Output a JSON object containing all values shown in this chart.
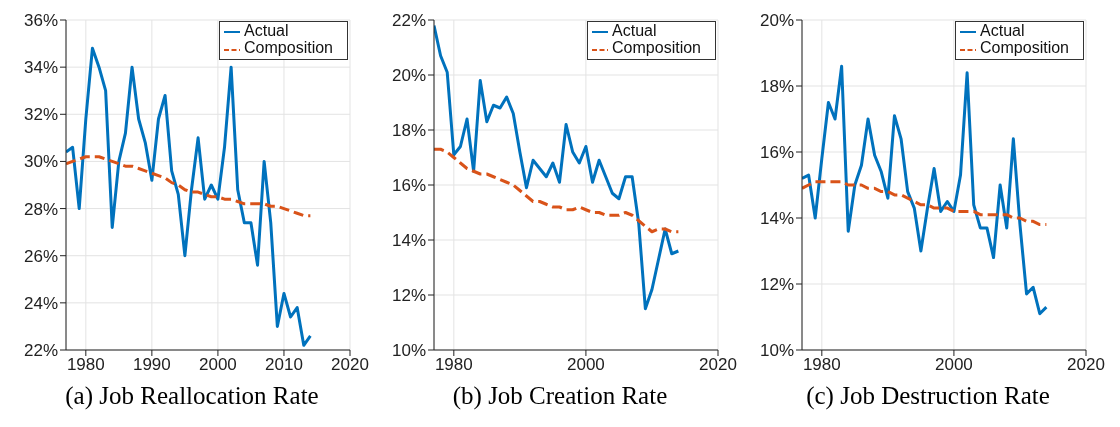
{
  "chart_data": [
    {
      "type": "line",
      "title": "(a) Job Reallocation Rate",
      "x": [
        1977,
        1978,
        1979,
        1980,
        1981,
        1982,
        1983,
        1984,
        1985,
        1986,
        1987,
        1988,
        1989,
        1990,
        1991,
        1992,
        1993,
        1994,
        1995,
        1996,
        1997,
        1998,
        1999,
        2000,
        2001,
        2002,
        2003,
        2004,
        2005,
        2006,
        2007,
        2008,
        2009,
        2010,
        2011,
        2012,
        2013,
        2014
      ],
      "series": [
        {
          "name": "Actual",
          "color": "#0072bd",
          "line_style": "solid",
          "values": [
            30.4,
            30.6,
            28.0,
            31.8,
            34.8,
            34.0,
            33.0,
            27.2,
            30.0,
            31.2,
            34.0,
            31.8,
            30.8,
            29.2,
            31.8,
            32.8,
            29.6,
            28.6,
            26.0,
            28.8,
            31.0,
            28.4,
            29.0,
            28.4,
            30.6,
            34.0,
            28.8,
            27.4,
            27.4,
            25.6,
            30.0,
            27.4,
            23.0,
            24.4,
            23.4,
            23.8,
            22.2,
            22.6
          ]
        },
        {
          "name": "Composition",
          "color": "#d95319",
          "line_style": "dashed",
          "values": [
            29.9,
            30.0,
            30.1,
            30.2,
            30.2,
            30.2,
            30.1,
            30.0,
            29.9,
            29.8,
            29.8,
            29.7,
            29.6,
            29.5,
            29.4,
            29.3,
            29.1,
            29.0,
            28.8,
            28.7,
            28.7,
            28.6,
            28.5,
            28.5,
            28.4,
            28.4,
            28.3,
            28.2,
            28.2,
            28.2,
            28.2,
            28.1,
            28.1,
            28.0,
            27.9,
            27.8,
            27.7,
            27.7
          ]
        }
      ],
      "xlim": [
        1977,
        2020
      ],
      "xticks": [
        1980,
        1990,
        2000,
        2010,
        2020
      ],
      "ylim": [
        22,
        36
      ],
      "yticks": [
        {
          "value": 22,
          "label": "22%"
        },
        {
          "value": 24,
          "label": "24%"
        },
        {
          "value": 26,
          "label": "26%"
        },
        {
          "value": 28,
          "label": "28%"
        },
        {
          "value": 30,
          "label": "30%"
        },
        {
          "value": 32,
          "label": "32%"
        },
        {
          "value": 34,
          "label": "34%"
        },
        {
          "value": 36,
          "label": "36%"
        }
      ],
      "grid": true,
      "legend": "top right",
      "marker": "none"
    },
    {
      "type": "line",
      "title": "(b) Job Creation Rate",
      "x": [
        1977,
        1978,
        1979,
        1980,
        1981,
        1982,
        1983,
        1984,
        1985,
        1986,
        1987,
        1988,
        1989,
        1990,
        1991,
        1992,
        1993,
        1994,
        1995,
        1996,
        1997,
        1998,
        1999,
        2000,
        2001,
        2002,
        2003,
        2004,
        2005,
        2006,
        2007,
        2008,
        2009,
        2010,
        2011,
        2012,
        2013,
        2014
      ],
      "series": [
        {
          "name": "Actual",
          "color": "#0072bd",
          "line_style": "solid",
          "values": [
            21.8,
            20.7,
            20.1,
            17.1,
            17.4,
            18.4,
            16.5,
            19.8,
            18.3,
            18.9,
            18.8,
            19.2,
            18.6,
            17.2,
            15.9,
            16.9,
            16.6,
            16.3,
            16.8,
            16.1,
            18.2,
            17.2,
            16.8,
            17.4,
            16.1,
            16.9,
            16.3,
            15.7,
            15.5,
            16.3,
            16.3,
            14.6,
            11.5,
            12.2,
            13.3,
            14.4,
            13.5,
            13.6
          ]
        },
        {
          "name": "Composition",
          "color": "#d95319",
          "line_style": "dashed",
          "values": [
            17.3,
            17.3,
            17.2,
            17.0,
            16.8,
            16.6,
            16.5,
            16.4,
            16.4,
            16.3,
            16.2,
            16.1,
            16.0,
            15.8,
            15.6,
            15.4,
            15.4,
            15.3,
            15.2,
            15.2,
            15.1,
            15.1,
            15.2,
            15.1,
            15.0,
            15.0,
            14.9,
            14.9,
            14.9,
            15.0,
            14.9,
            14.7,
            14.5,
            14.3,
            14.4,
            14.4,
            14.3,
            14.3
          ]
        }
      ],
      "xlim": [
        1977,
        2020
      ],
      "xticks": [
        1980,
        2000,
        2020
      ],
      "ylim": [
        10,
        22
      ],
      "yticks": [
        {
          "value": 10,
          "label": "10%"
        },
        {
          "value": 12,
          "label": "12%"
        },
        {
          "value": 14,
          "label": "14%"
        },
        {
          "value": 16,
          "label": "16%"
        },
        {
          "value": 18,
          "label": "18%"
        },
        {
          "value": 20,
          "label": "20%"
        },
        {
          "value": 22,
          "label": "22%"
        }
      ],
      "grid": true,
      "legend": "top right",
      "marker": "none"
    },
    {
      "type": "line",
      "title": "(c) Job Destruction Rate",
      "x": [
        1977,
        1978,
        1979,
        1980,
        1981,
        1982,
        1983,
        1984,
        1985,
        1986,
        1987,
        1988,
        1989,
        1990,
        1991,
        1992,
        1993,
        1994,
        1995,
        1996,
        1997,
        1998,
        1999,
        2000,
        2001,
        2002,
        2003,
        2004,
        2005,
        2006,
        2007,
        2008,
        2009,
        2010,
        2011,
        2012,
        2013,
        2014
      ],
      "series": [
        {
          "name": "Actual",
          "color": "#0072bd",
          "line_style": "solid",
          "values": [
            15.2,
            15.3,
            14.0,
            15.8,
            17.5,
            17.0,
            18.6,
            13.6,
            15.0,
            15.6,
            17.0,
            15.9,
            15.4,
            14.6,
            17.1,
            16.4,
            14.8,
            14.3,
            13.0,
            14.3,
            15.5,
            14.2,
            14.5,
            14.2,
            15.3,
            18.4,
            14.4,
            13.7,
            13.7,
            12.8,
            15.0,
            13.7,
            16.4,
            13.8,
            11.7,
            11.9,
            11.1,
            11.3
          ]
        },
        {
          "name": "Composition",
          "color": "#d95319",
          "line_style": "dashed",
          "values": [
            14.9,
            15.0,
            15.1,
            15.1,
            15.1,
            15.1,
            15.1,
            15.0,
            15.0,
            15.0,
            14.9,
            14.9,
            14.8,
            14.8,
            14.7,
            14.7,
            14.6,
            14.5,
            14.4,
            14.4,
            14.3,
            14.3,
            14.3,
            14.2,
            14.2,
            14.2,
            14.2,
            14.1,
            14.1,
            14.1,
            14.1,
            14.1,
            14.0,
            14.0,
            13.9,
            13.9,
            13.8,
            13.8
          ]
        }
      ],
      "xlim": [
        1977,
        2020
      ],
      "xticks": [
        1980,
        2000,
        2020
      ],
      "ylim": [
        10,
        20
      ],
      "yticks": [
        {
          "value": 10,
          "label": "10%"
        },
        {
          "value": 12,
          "label": "12%"
        },
        {
          "value": 14,
          "label": "14%"
        },
        {
          "value": 16,
          "label": "16%"
        },
        {
          "value": 18,
          "label": "18%"
        },
        {
          "value": 20,
          "label": "20%"
        }
      ],
      "grid": true,
      "legend": "top right",
      "marker": "none"
    }
  ]
}
